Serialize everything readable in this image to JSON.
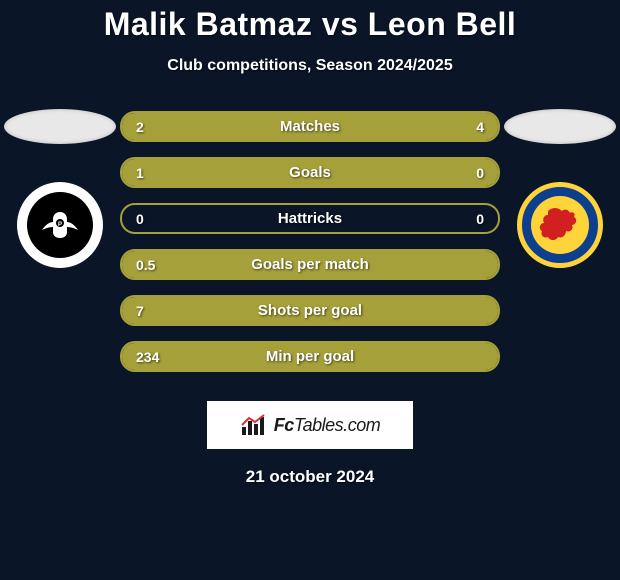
{
  "background_color": "#0a1628",
  "title": "Malik Batmaz vs Leon Bell",
  "subtitle": "Club competitions, Season 2024/2025",
  "title_fontsize": 32,
  "subtitle_fontsize": 16,
  "left_flag_color": "#e8e8e8",
  "right_flag_color": "#e8e8e8",
  "bar_fill_color": "#a6a03a",
  "bar_border_color": "#a6a03a",
  "rows": [
    {
      "label": "Matches",
      "left_value": "2",
      "right_value": "4",
      "left_fill_pct": 33.3,
      "right_fill_pct": 66.7
    },
    {
      "label": "Goals",
      "left_value": "1",
      "right_value": "0",
      "left_fill_pct": 100,
      "right_fill_pct": 0
    },
    {
      "label": "Hattricks",
      "left_value": "0",
      "right_value": "0",
      "left_fill_pct": 0,
      "right_fill_pct": 0
    },
    {
      "label": "Goals per match",
      "left_value": "0.5",
      "right_value": "",
      "left_fill_pct": 100,
      "right_fill_pct": 0
    },
    {
      "label": "Shots per goal",
      "left_value": "7",
      "right_value": "",
      "left_fill_pct": 100,
      "right_fill_pct": 0
    },
    {
      "label": "Min per goal",
      "left_value": "234",
      "right_value": "",
      "left_fill_pct": 100,
      "right_fill_pct": 0
    }
  ],
  "footer_brand_prefix": "Fc",
  "footer_brand_suffix": "Tables.com",
  "footer_date": "21 october 2024",
  "crest_left": {
    "outer_color": "#ffffff",
    "inner_color": "#000000"
  },
  "crest_right": {
    "outer_color": "#0d3f8f",
    "ring_color": "#ffd43b",
    "inner_color": "#ffd43b",
    "lion_color": "#d21f1f"
  }
}
